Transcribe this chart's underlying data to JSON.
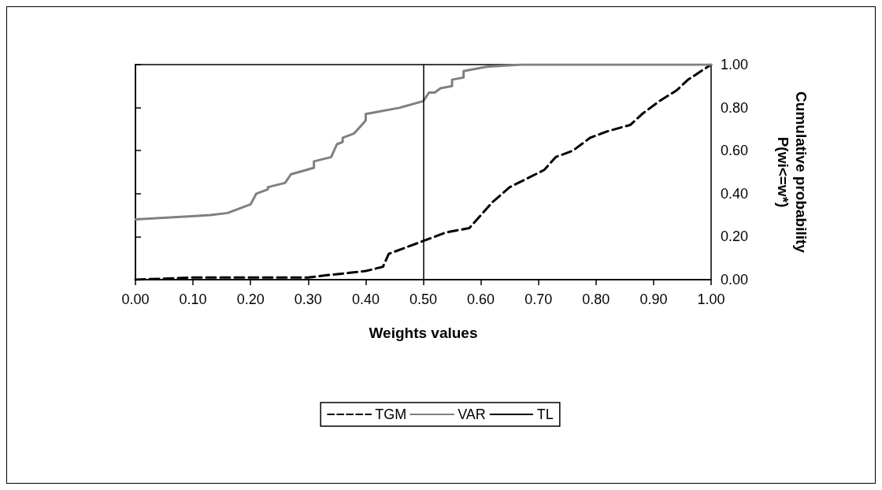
{
  "chart_data": {
    "type": "line",
    "xlabel": "Weights values",
    "ylabel": "Cumulative probability P(wi<=w*)",
    "xlim": [
      0,
      1
    ],
    "ylim": [
      0,
      1
    ],
    "xticks": [
      {
        "value": 0,
        "label": "0.00"
      },
      {
        "value": 0.1,
        "label": "0.10"
      },
      {
        "value": 0.2,
        "label": "0.20"
      },
      {
        "value": 0.3,
        "label": "0.30"
      },
      {
        "value": 0.4,
        "label": "0.40"
      },
      {
        "value": 0.5,
        "label": "0.50"
      },
      {
        "value": 0.6,
        "label": "0.60"
      },
      {
        "value": 0.7,
        "label": "0.70"
      },
      {
        "value": 0.8,
        "label": "0.80"
      },
      {
        "value": 0.9,
        "label": "0.90"
      },
      {
        "value": 1,
        "label": "1.00"
      }
    ],
    "yticks": [
      {
        "value": 0,
        "label": "0.00"
      },
      {
        "value": 0.2,
        "label": "0.20"
      },
      {
        "value": 0.4,
        "label": "0.40"
      },
      {
        "value": 0.6,
        "label": "0.60"
      },
      {
        "value": 0.8,
        "label": "0.80"
      },
      {
        "value": 1,
        "label": "1.00"
      }
    ],
    "legend": "bottom",
    "marker": "none",
    "ref_lines": [
      {
        "axis": "x",
        "value": 0.5,
        "label": "TL",
        "color": "#000000",
        "line_style": "solid"
      }
    ],
    "series": [
      {
        "name": "TGM",
        "color": "#000000",
        "line_style": "dashed",
        "x": [
          0,
          0.1,
          0.3,
          0.33,
          0.4,
          0.43,
          0.44,
          0.48,
          0.51,
          0.54,
          0.58,
          0.6,
          0.62,
          0.65,
          0.68,
          0.71,
          0.73,
          0.76,
          0.79,
          0.82,
          0.86,
          0.88,
          0.91,
          0.94,
          0.96,
          1
        ],
        "values": [
          0,
          0.01,
          0.01,
          0.02,
          0.04,
          0.06,
          0.12,
          0.16,
          0.19,
          0.22,
          0.24,
          0.3,
          0.36,
          0.43,
          0.47,
          0.51,
          0.57,
          0.6,
          0.66,
          0.69,
          0.72,
          0.77,
          0.83,
          0.88,
          0.93,
          1
        ]
      },
      {
        "name": "VAR",
        "color": "#808080",
        "line_style": "solid",
        "x": [
          0,
          0.13,
          0.16,
          0.18,
          0.2,
          0.21,
          0.23,
          0.23,
          0.26,
          0.27,
          0.31,
          0.31,
          0.34,
          0.35,
          0.36,
          0.36,
          0.38,
          0.4,
          0.4,
          0.46,
          0.5,
          0.51,
          0.52,
          0.53,
          0.55,
          0.55,
          0.57,
          0.57,
          0.61,
          0.67,
          1
        ],
        "values": [
          0.28,
          0.3,
          0.31,
          0.33,
          0.35,
          0.4,
          0.42,
          0.43,
          0.45,
          0.49,
          0.52,
          0.55,
          0.57,
          0.63,
          0.64,
          0.66,
          0.68,
          0.74,
          0.77,
          0.8,
          0.83,
          0.87,
          0.87,
          0.89,
          0.9,
          0.93,
          0.94,
          0.97,
          0.99,
          1,
          1
        ]
      }
    ]
  }
}
